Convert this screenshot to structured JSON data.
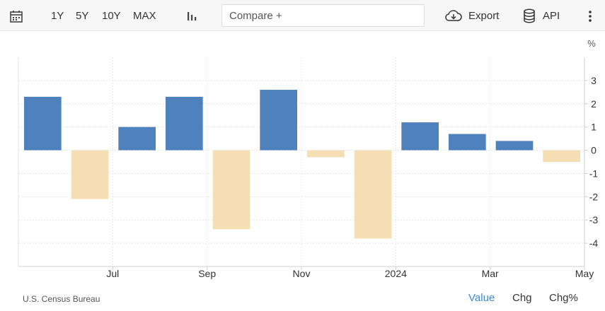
{
  "toolbar": {
    "ranges": [
      "1Y",
      "5Y",
      "10Y",
      "MAX"
    ],
    "compare_placeholder": "Compare +",
    "export_label": "Export",
    "api_label": "API"
  },
  "footer": {
    "source": "U.S. Census Bureau",
    "tabs": [
      "Value",
      "Chg",
      "Chg%"
    ],
    "active_tab": "Value"
  },
  "colors": {
    "positive": "#4f81bd",
    "negative": "#f5deb3",
    "active_tab": "#3c8ad8"
  },
  "chart_data": {
    "type": "bar",
    "unit_label": "%",
    "x_tick_labels": [
      "Jul",
      "Sep",
      "Nov",
      "2024",
      "Mar",
      "May"
    ],
    "x_tick_after_bar_index": [
      1,
      3,
      5,
      7,
      9,
      11
    ],
    "values": [
      2.3,
      -2.1,
      1.0,
      2.3,
      -3.4,
      2.6,
      -0.3,
      -3.8,
      1.2,
      0.7,
      0.4,
      -0.5
    ],
    "y_ticks": [
      3,
      2,
      1,
      0,
      -1,
      -2,
      -3,
      -4
    ],
    "ylim": [
      -5,
      4
    ],
    "grid": true,
    "y_axis_side": "right"
  }
}
